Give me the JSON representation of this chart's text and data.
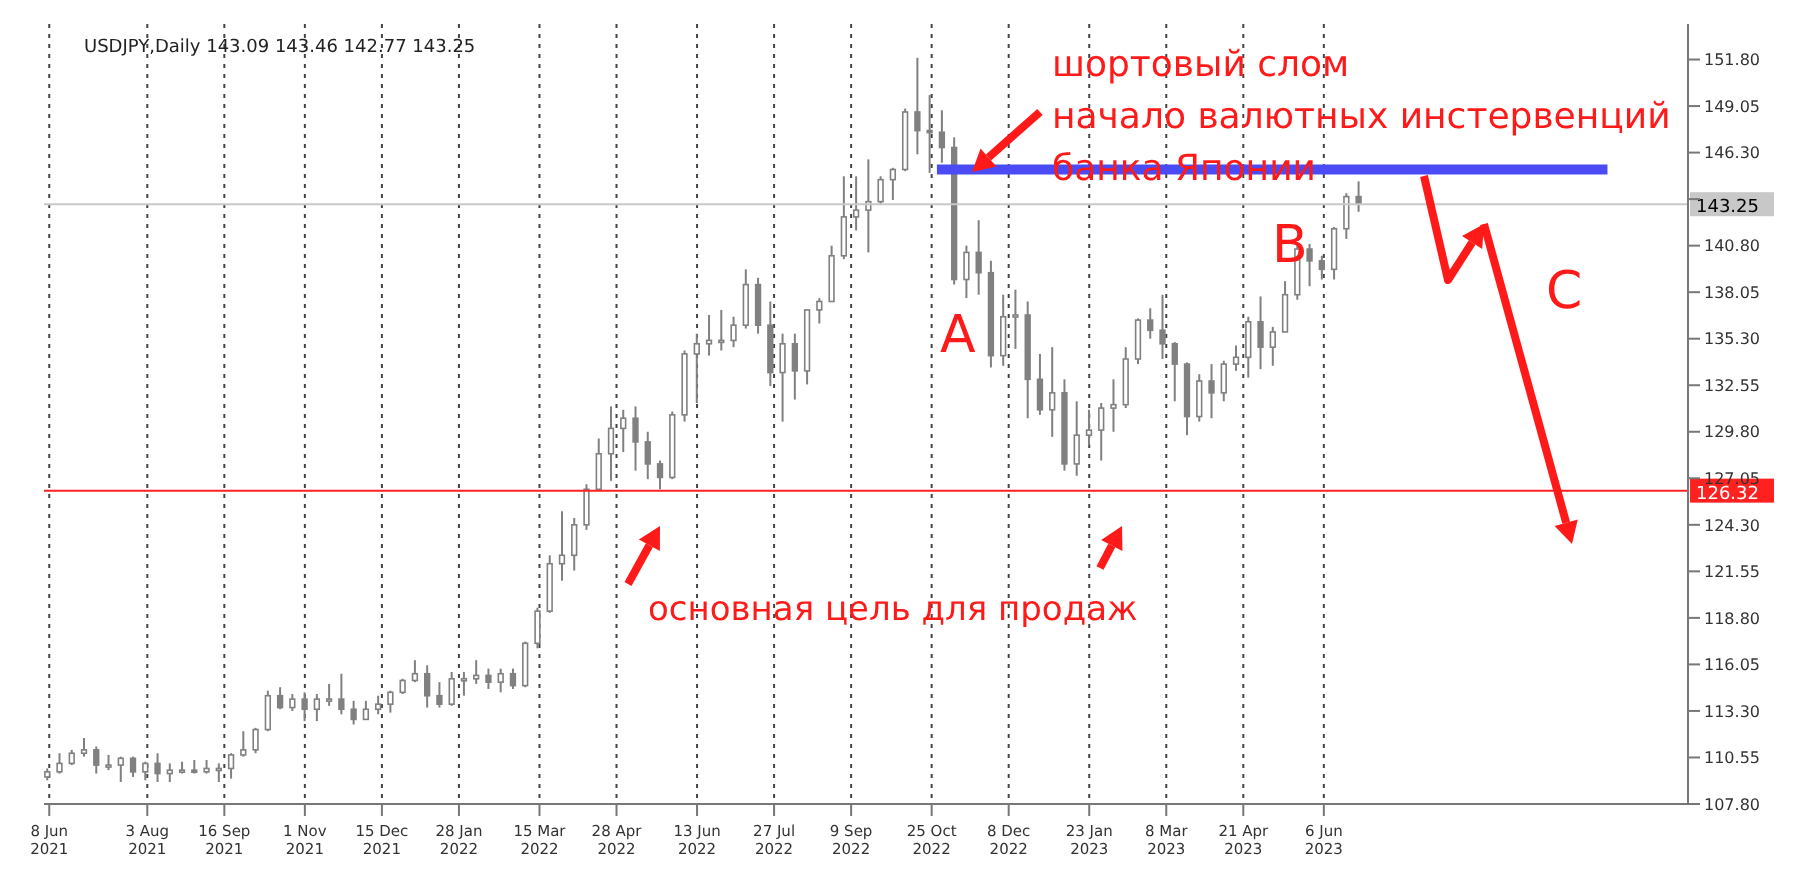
{
  "chart_data": {
    "type": "candlestick",
    "title": "USDJPY,Daily  143.09 143.46 142.77 143.25",
    "annotations": [
      "шортовый слом",
      "начало валютных инстервенций",
      "банка Японии",
      "A",
      "B",
      "C",
      "основная цель для продаж"
    ],
    "x": [
      "2021-06-07",
      "2021-06-14",
      "2021-06-21",
      "2021-06-28",
      "2021-07-05",
      "2021-07-12",
      "2021-07-19",
      "2021-07-26",
      "2021-08-02",
      "2021-08-09",
      "2021-08-16",
      "2021-08-23",
      "2021-08-30",
      "2021-09-06",
      "2021-09-13",
      "2021-09-20",
      "2021-09-27",
      "2021-10-04",
      "2021-10-11",
      "2021-10-18",
      "2021-10-25",
      "2021-11-01",
      "2021-11-08",
      "2021-11-15",
      "2021-11-22",
      "2021-11-29",
      "2021-12-06",
      "2021-12-13",
      "2021-12-20",
      "2021-12-27",
      "2022-01-03",
      "2022-01-10",
      "2022-01-17",
      "2022-01-24",
      "2022-01-31",
      "2022-02-07",
      "2022-02-14",
      "2022-02-21",
      "2022-02-28",
      "2022-03-07",
      "2022-03-14",
      "2022-03-21",
      "2022-03-28",
      "2022-04-04",
      "2022-04-11",
      "2022-04-18",
      "2022-04-25",
      "2022-05-02",
      "2022-05-09",
      "2022-05-16",
      "2022-05-23",
      "2022-05-30",
      "2022-06-06",
      "2022-06-13",
      "2022-06-20",
      "2022-06-27",
      "2022-07-04",
      "2022-07-11",
      "2022-07-18",
      "2022-07-25",
      "2022-08-01",
      "2022-08-08",
      "2022-08-15",
      "2022-08-22",
      "2022-08-29",
      "2022-09-05",
      "2022-09-12",
      "2022-09-19",
      "2022-09-26",
      "2022-10-03",
      "2022-10-10",
      "2022-10-17",
      "2022-10-24",
      "2022-10-31",
      "2022-11-07",
      "2022-11-14",
      "2022-11-21",
      "2022-11-28",
      "2022-12-05",
      "2022-12-12",
      "2022-12-19",
      "2022-12-26",
      "2023-01-02",
      "2023-01-09",
      "2023-01-16",
      "2023-01-23",
      "2023-01-30",
      "2023-02-06",
      "2023-02-13",
      "2023-02-20",
      "2023-02-27",
      "2023-03-06",
      "2023-03-13",
      "2023-03-20",
      "2023-03-27",
      "2023-04-03",
      "2023-04-10",
      "2023-04-17",
      "2023-04-24",
      "2023-05-01",
      "2023-05-08",
      "2023-05-15",
      "2023-05-22",
      "2023-05-29",
      "2023-06-05",
      "2023-06-12",
      "2023-06-19",
      "2023-06-26"
    ],
    "ohlc": [
      [
        109.4,
        109.9,
        109.2,
        109.7
      ],
      [
        109.7,
        110.8,
        109.6,
        110.2
      ],
      [
        110.2,
        111.0,
        110.1,
        110.8
      ],
      [
        110.8,
        111.7,
        110.6,
        111.0
      ],
      [
        111.0,
        111.2,
        109.6,
        110.1
      ],
      [
        110.1,
        110.7,
        109.8,
        110.1
      ],
      [
        110.1,
        110.6,
        109.1,
        110.5
      ],
      [
        110.5,
        110.6,
        109.4,
        109.7
      ],
      [
        109.7,
        110.3,
        109.2,
        110.2
      ],
      [
        110.2,
        110.8,
        109.1,
        109.6
      ],
      [
        109.6,
        110.2,
        109.1,
        109.8
      ],
      [
        109.8,
        110.3,
        109.6,
        109.8
      ],
      [
        109.8,
        110.4,
        109.6,
        109.7
      ],
      [
        109.7,
        110.4,
        109.6,
        109.9
      ],
      [
        109.9,
        110.2,
        109.1,
        109.9
      ],
      [
        109.9,
        110.8,
        109.3,
        110.7
      ],
      [
        110.7,
        112.1,
        110.6,
        111.0
      ],
      [
        111.0,
        112.3,
        110.8,
        112.2
      ],
      [
        112.2,
        114.5,
        112.1,
        114.2
      ],
      [
        114.2,
        114.7,
        113.4,
        113.5
      ],
      [
        113.5,
        114.3,
        113.3,
        114.0
      ],
      [
        114.0,
        114.4,
        112.7,
        113.4
      ],
      [
        113.4,
        114.3,
        112.7,
        114.0
      ],
      [
        114.0,
        114.9,
        113.6,
        114.0
      ],
      [
        114.0,
        115.5,
        113.1,
        113.4
      ],
      [
        113.4,
        113.9,
        112.5,
        112.8
      ],
      [
        112.8,
        113.9,
        112.8,
        113.4
      ],
      [
        113.4,
        114.2,
        113.1,
        113.7
      ],
      [
        113.7,
        114.5,
        113.2,
        114.4
      ],
      [
        114.4,
        115.2,
        114.3,
        115.1
      ],
      [
        115.1,
        116.3,
        115.0,
        115.5
      ],
      [
        115.5,
        116.0,
        113.5,
        114.2
      ],
      [
        114.2,
        115.0,
        113.5,
        113.7
      ],
      [
        113.7,
        115.6,
        113.6,
        115.2
      ],
      [
        115.2,
        115.6,
        114.2,
        115.2
      ],
      [
        115.2,
        116.3,
        114.9,
        115.4
      ],
      [
        115.4,
        115.8,
        114.6,
        115.0
      ],
      [
        115.0,
        115.8,
        114.4,
        115.5
      ],
      [
        115.5,
        115.8,
        114.6,
        114.8
      ],
      [
        114.8,
        117.4,
        114.7,
        117.3
      ],
      [
        117.3,
        119.4,
        117.0,
        119.2
      ],
      [
        119.2,
        122.5,
        119.1,
        122.0
      ],
      [
        122.0,
        125.1,
        121.0,
        122.5
      ],
      [
        122.5,
        124.7,
        121.6,
        124.3
      ],
      [
        124.3,
        126.7,
        124.0,
        126.4
      ],
      [
        126.4,
        129.4,
        126.3,
        128.5
      ],
      [
        128.5,
        131.3,
        126.9,
        130.0
      ],
      [
        130.0,
        131.1,
        128.6,
        130.6
      ],
      [
        130.6,
        131.3,
        127.5,
        129.2
      ],
      [
        129.2,
        129.8,
        127.0,
        127.9
      ],
      [
        127.9,
        128.1,
        126.4,
        127.1
      ],
      [
        127.1,
        131.0,
        127.0,
        130.8
      ],
      [
        130.8,
        134.6,
        130.4,
        134.4
      ],
      [
        134.4,
        135.6,
        131.5,
        135.0
      ],
      [
        135.0,
        136.7,
        134.3,
        135.2
      ],
      [
        135.2,
        137.0,
        134.6,
        135.2
      ],
      [
        135.2,
        136.6,
        134.8,
        136.1
      ],
      [
        136.1,
        139.4,
        135.9,
        138.5
      ],
      [
        138.5,
        138.9,
        135.6,
        136.1
      ],
      [
        136.1,
        137.5,
        132.5,
        133.3
      ],
      [
        133.3,
        135.6,
        130.4,
        135.0
      ],
      [
        135.0,
        135.6,
        131.7,
        133.4
      ],
      [
        133.4,
        137.0,
        132.6,
        137.0
      ],
      [
        137.0,
        137.7,
        136.2,
        137.5
      ],
      [
        137.5,
        140.8,
        137.5,
        140.2
      ],
      [
        140.2,
        144.9,
        140.0,
        142.5
      ],
      [
        142.5,
        144.9,
        141.7,
        142.9
      ],
      [
        142.9,
        145.9,
        140.4,
        143.4
      ],
      [
        143.4,
        144.9,
        143.2,
        144.7
      ],
      [
        144.7,
        145.4,
        143.5,
        145.3
      ],
      [
        145.3,
        148.9,
        145.2,
        148.7
      ],
      [
        148.7,
        151.9,
        146.2,
        147.6
      ],
      [
        147.6,
        149.7,
        145.1,
        147.5
      ],
      [
        147.5,
        148.8,
        145.7,
        146.6
      ],
      [
        146.6,
        147.2,
        138.5,
        138.8
      ],
      [
        138.8,
        140.8,
        137.7,
        140.4
      ],
      [
        140.4,
        142.3,
        137.9,
        139.2
      ],
      [
        139.2,
        139.9,
        133.6,
        134.3
      ],
      [
        134.3,
        137.9,
        133.7,
        136.6
      ],
      [
        136.6,
        138.2,
        134.7,
        136.7
      ],
      [
        136.7,
        137.5,
        130.6,
        132.9
      ],
      [
        132.9,
        134.4,
        130.8,
        131.1
      ],
      [
        131.1,
        134.8,
        129.5,
        132.1
      ],
      [
        132.1,
        132.9,
        127.5,
        127.9
      ],
      [
        127.9,
        131.6,
        127.2,
        129.6
      ],
      [
        129.6,
        131.1,
        129.0,
        129.9
      ],
      [
        129.9,
        131.5,
        128.1,
        131.2
      ],
      [
        131.2,
        132.9,
        129.8,
        131.4
      ],
      [
        131.4,
        134.8,
        131.2,
        134.1
      ],
      [
        134.1,
        136.5,
        133.8,
        136.4
      ],
      [
        136.4,
        137.1,
        135.3,
        135.8
      ],
      [
        135.8,
        137.9,
        134.1,
        135.0
      ],
      [
        135.0,
        135.1,
        131.6,
        133.8
      ],
      [
        133.8,
        133.9,
        129.6,
        130.7
      ],
      [
        130.7,
        133.2,
        130.4,
        132.8
      ],
      [
        132.8,
        133.8,
        130.6,
        132.1
      ],
      [
        132.1,
        134.0,
        131.6,
        133.8
      ],
      [
        133.8,
        134.9,
        133.4,
        134.2
      ],
      [
        134.2,
        136.6,
        133.0,
        136.3
      ],
      [
        136.3,
        137.8,
        133.5,
        134.8
      ],
      [
        134.8,
        136.0,
        133.7,
        135.7
      ],
      [
        135.7,
        138.7,
        135.7,
        137.9
      ],
      [
        137.9,
        140.9,
        137.6,
        140.6
      ],
      [
        140.6,
        140.9,
        138.4,
        139.9
      ],
      [
        139.9,
        140.2,
        138.8,
        139.4
      ],
      [
        139.4,
        141.9,
        138.8,
        141.8
      ],
      [
        141.8,
        143.9,
        141.2,
        143.7
      ],
      [
        143.7,
        144.6,
        142.8,
        143.25
      ]
    ],
    "color": "#808080",
    "series": [
      {
        "type": "line",
        "x": [
          "2022-10-28",
          "2023-11-15"
        ],
        "values": [
          145.3,
          145.3
        ],
        "color": "#4b4bf5"
      }
    ],
    "ref_lines": [
      {
        "axis": "y",
        "value": 143.25,
        "label": "143.25",
        "color": "#c8c8c8"
      },
      {
        "axis": "y",
        "value": 126.32,
        "label": "126.32",
        "color": "#ff2020"
      }
    ],
    "xlim": [
      "2021-06-05",
      "2023-12-31"
    ],
    "xticks": [
      {
        "value": "2021-06-08",
        "label": "8 Jun 2021"
      },
      {
        "value": "2021-08-03",
        "label": "3 Aug 2021"
      },
      {
        "value": "2021-09-16",
        "label": "16 Sep 2021"
      },
      {
        "value": "2021-11-01",
        "label": "1 Nov 2021"
      },
      {
        "value": "2021-12-15",
        "label": "15 Dec 2021"
      },
      {
        "value": "2022-01-28",
        "label": "28 Jan 2022"
      },
      {
        "value": "2022-03-15",
        "label": "15 Mar 2022"
      },
      {
        "value": "2022-04-28",
        "label": "28 Apr 2022"
      },
      {
        "value": "2022-06-13",
        "label": "13 Jun 2022"
      },
      {
        "value": "2022-07-27",
        "label": "27 Jul 2022"
      },
      {
        "value": "2022-09-09",
        "label": "9 Sep 2022"
      },
      {
        "value": "2022-10-25",
        "label": "25 Oct 2022"
      },
      {
        "value": "2022-12-08",
        "label": "8 Dec 2022"
      },
      {
        "value": "2023-01-23",
        "label": "23 Jan 2023"
      },
      {
        "value": "2023-03-08",
        "label": "8 Mar 2023"
      },
      {
        "value": "2023-04-21",
        "label": "21 Apr 2023"
      },
      {
        "value": "2023-06-06",
        "label": "6 Jun 2023"
      }
    ],
    "ylim": [
      107.8,
      153.9
    ],
    "yticks": [
      {
        "value": 107.8,
        "label": "107.80"
      },
      {
        "value": 110.55,
        "label": "110.55"
      },
      {
        "value": 113.3,
        "label": "113.30"
      },
      {
        "value": 116.05,
        "label": "116.05"
      },
      {
        "value": 118.8,
        "label": "118.80"
      },
      {
        "value": 121.55,
        "label": "121.55"
      },
      {
        "value": 124.3,
        "label": "124.30"
      },
      {
        "value": 127.05,
        "label": "127.05"
      },
      {
        "value": 129.8,
        "label": "129.80"
      },
      {
        "value": 132.55,
        "label": "132.55"
      },
      {
        "value": 135.3,
        "label": "135.30"
      },
      {
        "value": 138.05,
        "label": "138.05"
      },
      {
        "value": 140.8,
        "label": "140.80"
      },
      {
        "value": 143.55,
        "label": null
      },
      {
        "value": 146.3,
        "label": "146.30"
      },
      {
        "value": 149.05,
        "label": "149.05"
      },
      {
        "value": 151.8,
        "label": "151.80"
      }
    ],
    "grid": "x"
  }
}
